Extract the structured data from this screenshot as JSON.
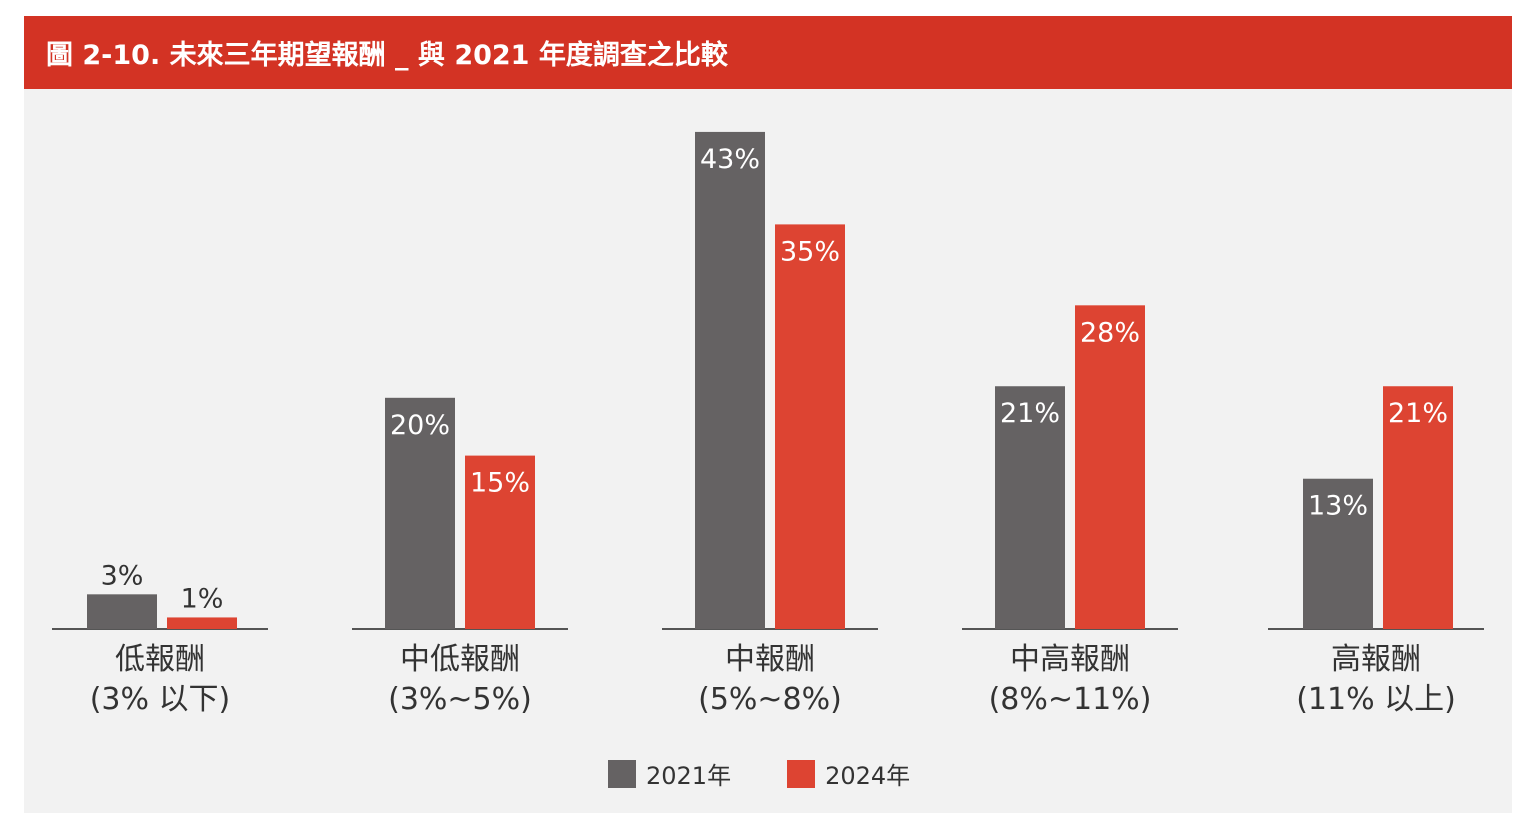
{
  "title": "圖 2-10. 未來三年期望報酬 _ 與 2021 年度調查之比較",
  "colors": {
    "header": "#d33324",
    "series_2021": "#656263",
    "series_2024": "#dd4432",
    "background": "#f2f2f2"
  },
  "chart_data": {
    "type": "bar",
    "categories": [
      {
        "line1": "低報酬",
        "line2": "(3% 以下)"
      },
      {
        "line1": "中低報酬",
        "line2": "(3%~5%)"
      },
      {
        "line1": "中報酬",
        "line2": "(5%~8%)"
      },
      {
        "line1": "中高報酬",
        "line2": "(8%~11%)"
      },
      {
        "line1": "高報酬",
        "line2": "(11% 以上)"
      }
    ],
    "series": [
      {
        "name": "2021年",
        "values": [
          3,
          20,
          43,
          21,
          13
        ],
        "labels": [
          "3%",
          "20%",
          "43%",
          "21%",
          "13%"
        ]
      },
      {
        "name": "2024年",
        "values": [
          1,
          15,
          35,
          28,
          21
        ],
        "labels": [
          "1%",
          "15%",
          "35%",
          "28%",
          "21%"
        ]
      }
    ],
    "unit": "%",
    "legend_position": "bottom",
    "grid": false
  }
}
